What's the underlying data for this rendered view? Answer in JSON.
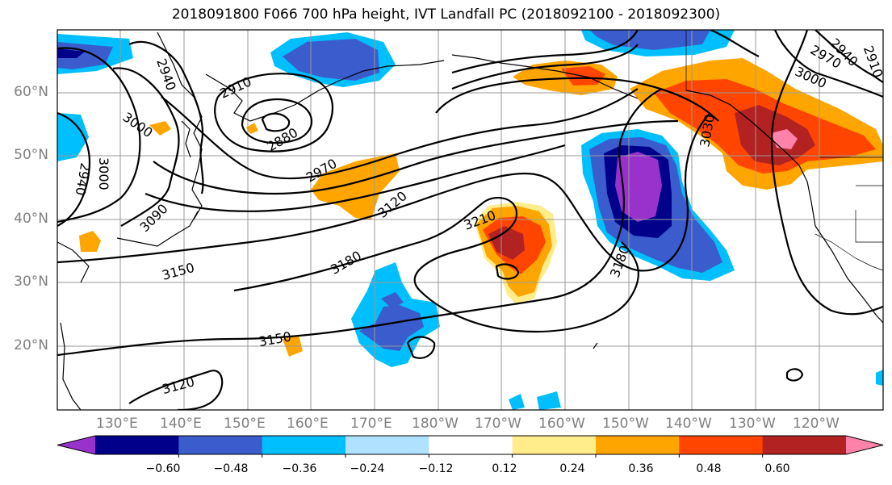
{
  "title": "2018091800 F066 700 hPa height, IVT Landfall PC (2018092100 - 2018092300)",
  "map": {
    "lon_labels": [
      "130°E",
      "140°E",
      "150°E",
      "160°E",
      "170°E",
      "180°W",
      "170°W",
      "160°W",
      "150°W",
      "140°W",
      "130°W",
      "120°W"
    ],
    "lat_labels": [
      "60°N",
      "50°N",
      "40°N",
      "30°N",
      "20°N"
    ],
    "contour_labels": [
      "2940",
      "2910",
      "3000",
      "2880",
      "2970",
      "3090",
      "3120",
      "3210",
      "3030",
      "3000",
      "2970",
      "2940",
      "2910",
      "3000",
      "2940",
      "3150",
      "3180",
      "3180",
      "3150",
      "3120"
    ]
  },
  "colorbar": {
    "ticks": [
      "−0.60",
      "−0.48",
      "−0.36",
      "−0.24",
      "−0.12",
      "0.12",
      "0.24",
      "0.36",
      "0.48",
      "0.60"
    ],
    "colors": [
      "#9932cc",
      "#00008b",
      "#3a5ccc",
      "#00bfff",
      "#b0e2ff",
      "#ffffff",
      "#ffec8b",
      "#ffa500",
      "#ff4500",
      "#b22222",
      "#ff82ab"
    ]
  }
}
